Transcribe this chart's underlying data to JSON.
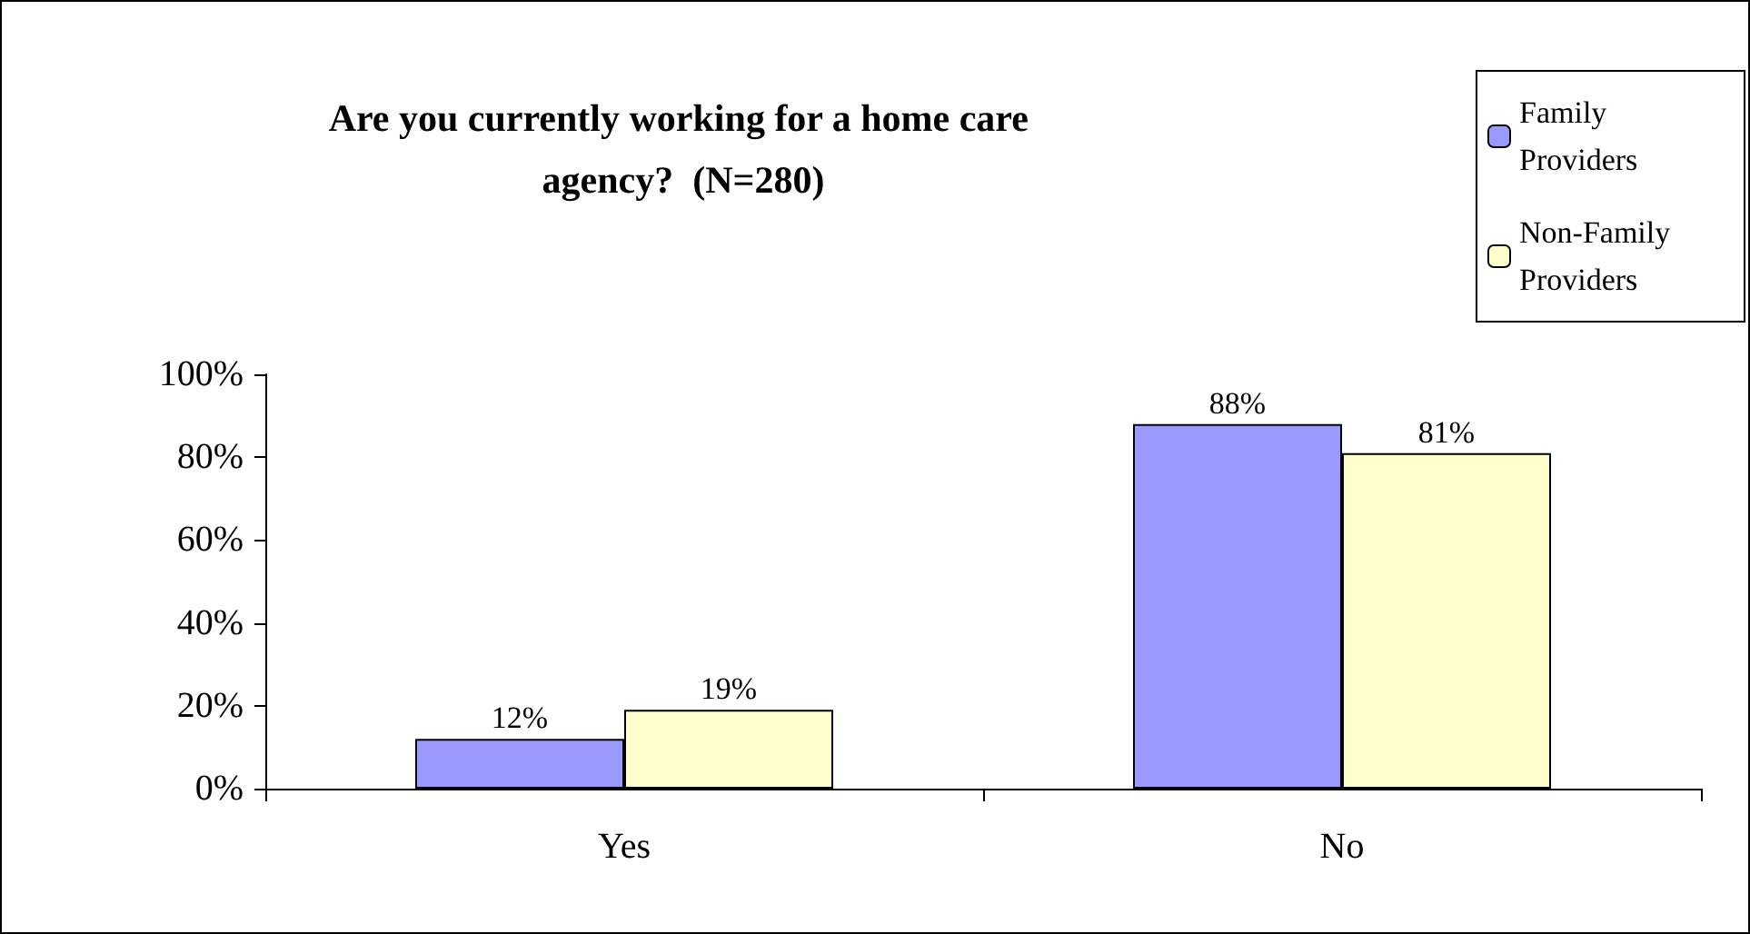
{
  "chart_data": {
    "type": "bar",
    "title": "Are you currently working for a home care agency?  (N=280)",
    "categories": [
      "Yes",
      "No"
    ],
    "series": [
      {
        "name": "Family Providers",
        "color": "#9999ff",
        "values": [
          12,
          88
        ],
        "value_labels": [
          "12%",
          "88%"
        ]
      },
      {
        "name": "Non-Family Providers",
        "color": "#ffffcc",
        "values": [
          19,
          81
        ],
        "value_labels": [
          "19%",
          "81%"
        ]
      }
    ],
    "ylim": [
      0,
      100
    ],
    "yticks": [
      {
        "value": 0,
        "label": "0%"
      },
      {
        "value": 20,
        "label": "20%"
      },
      {
        "value": 40,
        "label": "40%"
      },
      {
        "value": 60,
        "label": "60%"
      },
      {
        "value": 80,
        "label": "80%"
      },
      {
        "value": 100,
        "label": "100%"
      }
    ],
    "grid": false,
    "legend": "top right"
  }
}
